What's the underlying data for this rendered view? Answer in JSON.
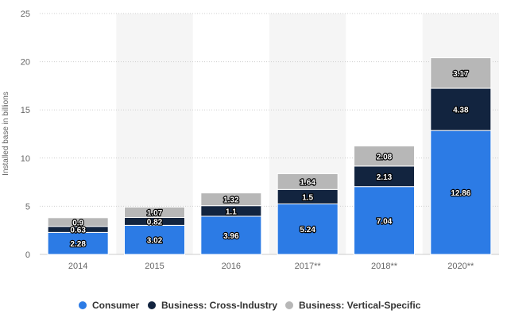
{
  "chart_data": {
    "type": "bar",
    "stacked": true,
    "categories": [
      "2014",
      "2015",
      "2016",
      "2017**",
      "2018**",
      "2020**"
    ],
    "series": [
      {
        "name": "Consumer",
        "color": "#2c7be5",
        "values": [
          2.28,
          3.02,
          3.96,
          5.24,
          7.04,
          12.86
        ]
      },
      {
        "name": "Business: Cross-Industry",
        "color": "#12243f",
        "values": [
          0.63,
          0.82,
          1.1,
          1.5,
          2.13,
          4.38
        ]
      },
      {
        "name": "Business: Vertical-Specific",
        "color": "#b7b7b7",
        "values": [
          0.9,
          1.07,
          1.32,
          1.64,
          2.08,
          3.17
        ]
      }
    ],
    "data_labels": [
      [
        "2.28",
        "3.02",
        "3.96",
        "5.24",
        "7.04",
        "12.86"
      ],
      [
        "0.63",
        "0.82",
        "1.1",
        "1.5",
        "2.13",
        "4.38"
      ],
      [
        "0.9",
        "1.07",
        "1.32",
        "1.64",
        "2.08",
        "3.17"
      ]
    ],
    "xlabel": "",
    "ylabel": "Installed base in billions",
    "ylim": [
      0,
      25
    ],
    "yticks": [
      0,
      5,
      10,
      15,
      20,
      25
    ],
    "grid": "horizontal dashed",
    "alternating_column_shading": true,
    "legend_position": "bottom"
  }
}
